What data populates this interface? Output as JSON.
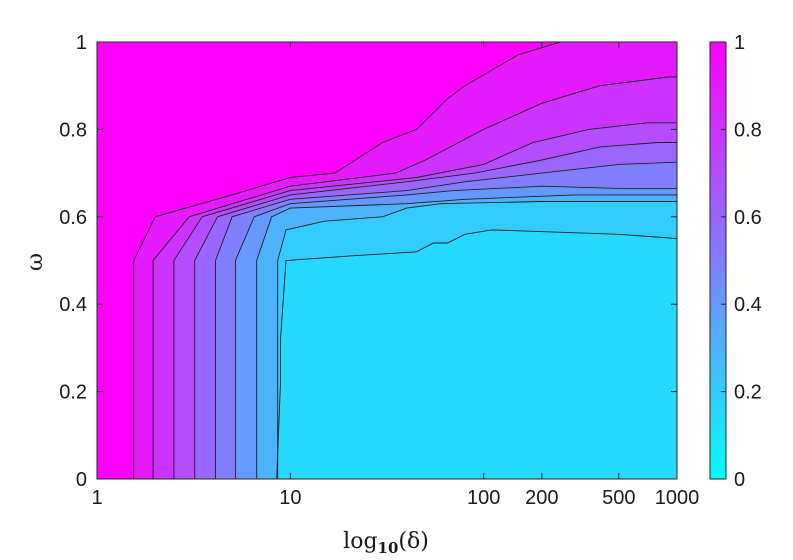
{
  "chart_data": {
    "type": "contour",
    "xlabel": "log₁₀(δ)",
    "ylabel": "ω",
    "x_scale": "log",
    "xlim": [
      1,
      1000
    ],
    "ylim": [
      0,
      1
    ],
    "x_ticks": [
      1,
      10,
      100,
      200,
      500,
      1000
    ],
    "x_tick_labels": [
      "1",
      "10",
      "100",
      "200",
      "500",
      "1000"
    ],
    "y_ticks": [
      0,
      0.2,
      0.4,
      0.6,
      0.8,
      1
    ],
    "y_tick_labels": [
      "0",
      "0.2",
      "0.4",
      "0.6",
      "0.8",
      "1"
    ],
    "colorbar": {
      "range": [
        0,
        1
      ],
      "ticks": [
        0,
        0.2,
        0.4,
        0.6,
        0.8,
        1
      ],
      "tick_labels": [
        "0",
        "0.2",
        "0.4",
        "0.6",
        "0.8",
        "1"
      ],
      "color_low": "#00FFFF",
      "color_high": "#FF00FF"
    },
    "level_fill_values": [
      1.0,
      0.9,
      0.8,
      0.7,
      0.6,
      0.5,
      0.4,
      0.3,
      0.2,
      0.15
    ],
    "contours": [
      [
        [
          1.55,
          0
        ],
        [
          1.55,
          0.5
        ],
        [
          2,
          0.6
        ],
        [
          5,
          0.65
        ],
        [
          10,
          0.69
        ],
        [
          17,
          0.7
        ],
        [
          30,
          0.77
        ],
        [
          45,
          0.8
        ],
        [
          65,
          0.87
        ],
        [
          80,
          0.9
        ],
        [
          150,
          0.97
        ],
        [
          250,
          1
        ]
      ],
      [
        [
          1.95,
          0
        ],
        [
          1.95,
          0.5
        ],
        [
          3,
          0.6
        ],
        [
          10,
          0.67
        ],
        [
          35,
          0.7
        ],
        [
          50,
          0.73
        ],
        [
          100,
          0.8
        ],
        [
          200,
          0.86
        ],
        [
          400,
          0.9
        ],
        [
          900,
          0.92
        ],
        [
          1000,
          0.92
        ]
      ],
      [
        [
          2.5,
          0
        ],
        [
          2.5,
          0.5
        ],
        [
          3.5,
          0.6
        ],
        [
          10,
          0.66
        ],
        [
          45,
          0.69
        ],
        [
          100,
          0.72
        ],
        [
          180,
          0.77
        ],
        [
          350,
          0.8
        ],
        [
          700,
          0.815
        ],
        [
          1000,
          0.815
        ]
      ],
      [
        [
          3.2,
          0
        ],
        [
          3.2,
          0.5
        ],
        [
          4.2,
          0.6
        ],
        [
          10,
          0.65
        ],
        [
          40,
          0.68
        ],
        [
          90,
          0.7
        ],
        [
          200,
          0.73
        ],
        [
          400,
          0.76
        ],
        [
          800,
          0.77
        ],
        [
          1000,
          0.77
        ]
      ],
      [
        [
          4.1,
          0
        ],
        [
          4.1,
          0.5
        ],
        [
          5,
          0.6
        ],
        [
          10,
          0.64
        ],
        [
          40,
          0.66
        ],
        [
          80,
          0.68
        ],
        [
          200,
          0.7
        ],
        [
          500,
          0.72
        ],
        [
          1000,
          0.725
        ]
      ],
      [
        [
          5.2,
          0
        ],
        [
          5.2,
          0.5
        ],
        [
          6.5,
          0.6
        ],
        [
          10,
          0.63
        ],
        [
          40,
          0.65
        ],
        [
          70,
          0.66
        ],
        [
          200,
          0.67
        ],
        [
          500,
          0.665
        ],
        [
          1000,
          0.665
        ]
      ],
      [
        [
          6.7,
          0
        ],
        [
          6.7,
          0.5
        ],
        [
          8,
          0.6
        ],
        [
          10,
          0.62
        ],
        [
          40,
          0.63
        ],
        [
          80,
          0.64
        ],
        [
          300,
          0.65
        ],
        [
          1000,
          0.65
        ]
      ],
      [
        [
          8.6,
          0
        ],
        [
          8.6,
          0.5
        ],
        [
          9.5,
          0.57
        ],
        [
          15,
          0.59
        ],
        [
          30,
          0.6
        ],
        [
          40,
          0.62
        ],
        [
          60,
          0.63
        ],
        [
          200,
          0.635
        ],
        [
          1000,
          0.635
        ]
      ],
      [
        [
          8.5,
          0
        ],
        [
          8.9,
          0.22
        ],
        [
          8.9,
          0.32
        ],
        [
          9.5,
          0.5
        ],
        [
          20,
          0.51
        ],
        [
          45,
          0.52
        ],
        [
          55,
          0.54
        ],
        [
          65,
          0.54
        ],
        [
          80,
          0.56
        ],
        [
          110,
          0.57
        ],
        [
          500,
          0.56
        ],
        [
          1000,
          0.55
        ]
      ]
    ]
  }
}
